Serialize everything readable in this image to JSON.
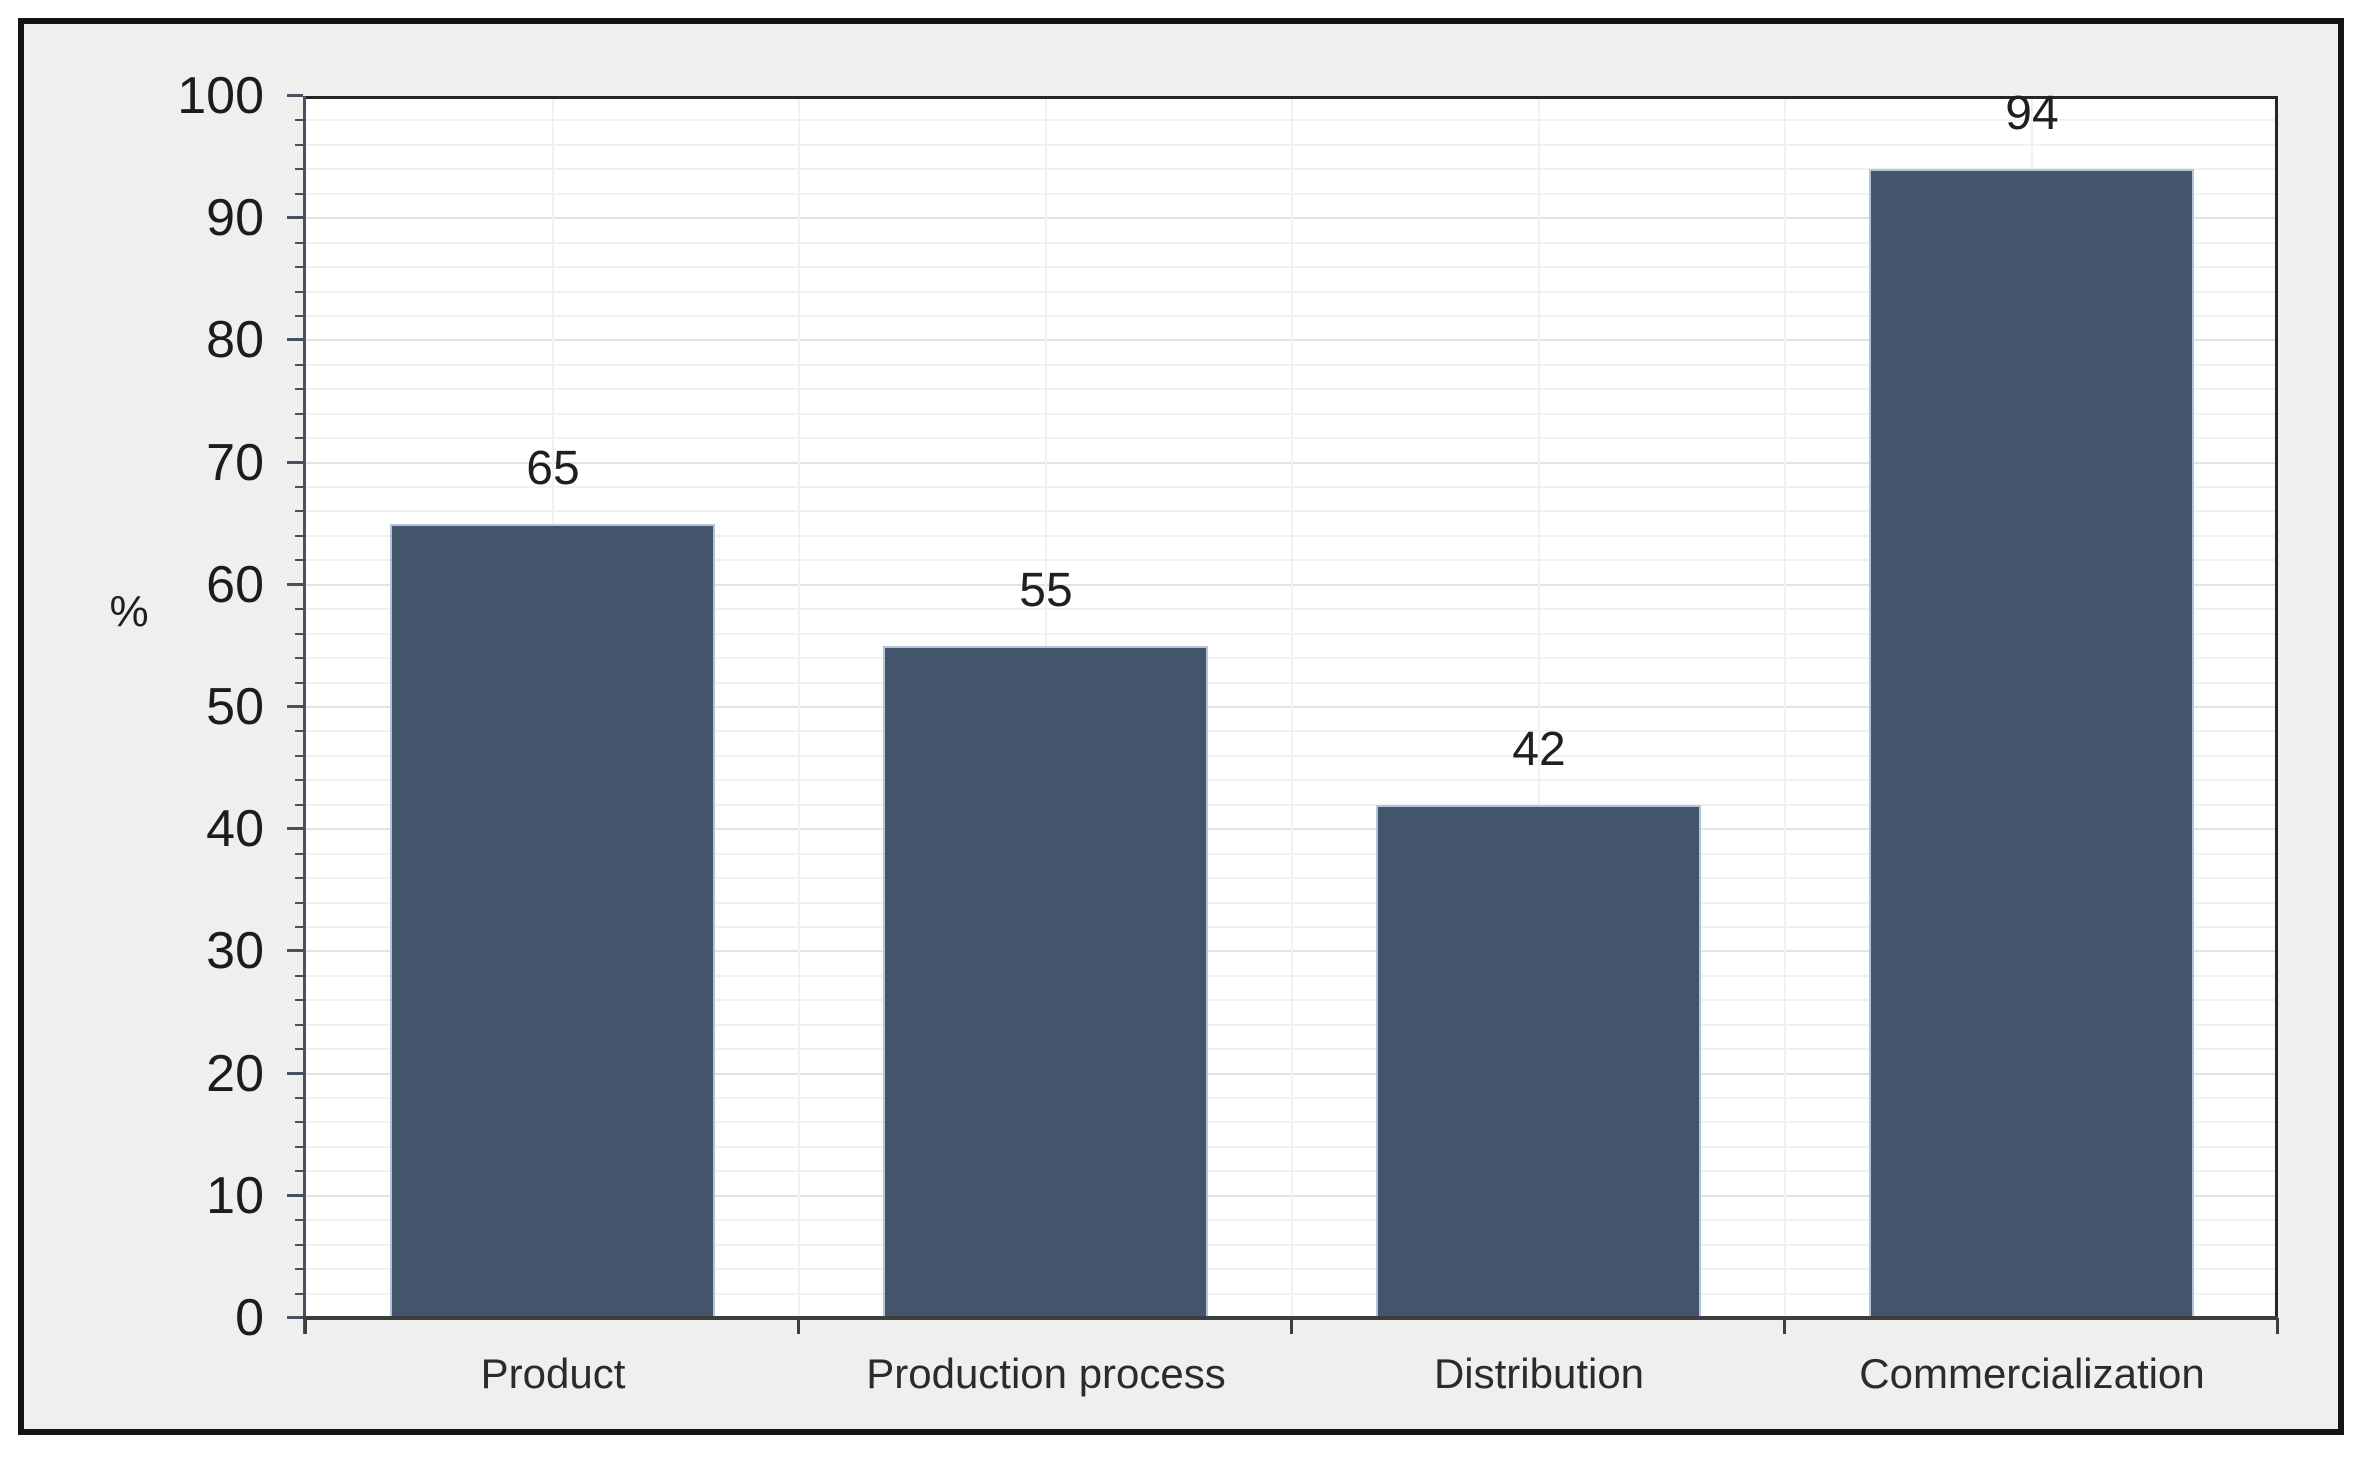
{
  "chart_data": {
    "type": "bar",
    "categories": [
      "Product",
      "Production process",
      "Distribution",
      "Commercialization"
    ],
    "values": [
      65,
      55,
      42,
      94
    ],
    "data_labels": [
      "65",
      "55",
      "42",
      "94"
    ],
    "title": "",
    "xlabel": "",
    "ylabel": "%",
    "ylim": [
      0,
      100
    ],
    "ytick_step": 10,
    "yminor_step": 2,
    "yticks": [
      0,
      10,
      20,
      30,
      40,
      50,
      60,
      70,
      80,
      90,
      100
    ],
    "ytick_labels": [
      "0",
      "10",
      "20",
      "30",
      "40",
      "50",
      "60",
      "70",
      "80",
      "90",
      "100"
    ],
    "grid": "horizontal minor every 2 and major every 10, faint vertical lines at category half-widths",
    "legend": "none",
    "colors": {
      "bar_fill": "#44546a",
      "bar_edge": "#b3c4d9",
      "plot_background": "#ffffff",
      "chart_background": "#efeff0",
      "outer_border": "#141414",
      "page_background": "#ffffff",
      "x_axis_line": "#3d3d3d",
      "y_axis_line": "#46535f",
      "plot_border": "#262626",
      "gridline_major": "#e2e2e5",
      "gridline_minor": "#f1f1f3",
      "text": "#1f1f1f"
    }
  }
}
